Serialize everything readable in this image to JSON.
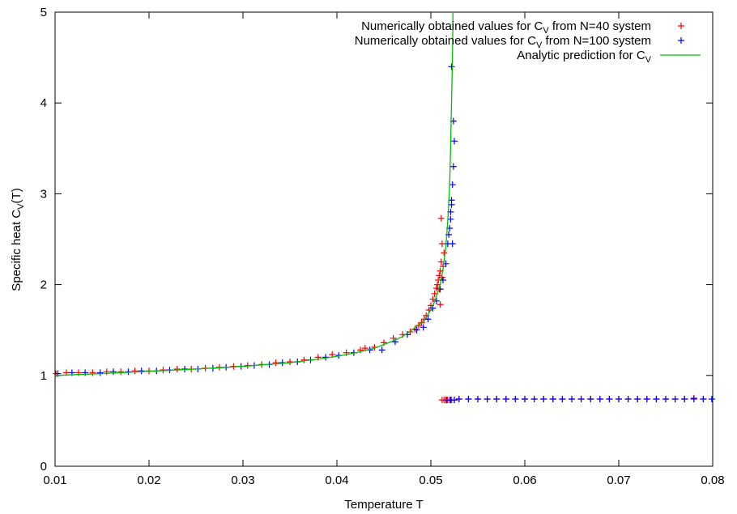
{
  "chart_data": {
    "type": "scatter",
    "xlabel": "Temperature T",
    "ylabel": {
      "prefix": "Specific heat C",
      "sub": "V",
      "suffix": "(T)"
    },
    "xlim": [
      0.01,
      0.08
    ],
    "ylim": [
      0,
      5
    ],
    "xticks": [
      "0.01",
      "0.02",
      "0.03",
      "0.04",
      "0.05",
      "0.06",
      "0.07",
      "0.08"
    ],
    "yticks": [
      "0",
      "1",
      "2",
      "3",
      "4",
      "5"
    ],
    "grid": false,
    "legend_position": "top-right",
    "series": [
      {
        "name": {
          "prefix": "Numerically obtained values for C",
          "sub": "V",
          "suffix": " from N=40 system"
        },
        "kind": "points",
        "color": "#ff0000",
        "points": [
          [
            0.0101,
            1.02
          ],
          [
            0.0112,
            1.03
          ],
          [
            0.0125,
            1.03
          ],
          [
            0.014,
            1.03
          ],
          [
            0.0155,
            1.04
          ],
          [
            0.017,
            1.04
          ],
          [
            0.0185,
            1.05
          ],
          [
            0.02,
            1.05
          ],
          [
            0.0215,
            1.06
          ],
          [
            0.023,
            1.07
          ],
          [
            0.0245,
            1.07
          ],
          [
            0.026,
            1.08
          ],
          [
            0.0275,
            1.09
          ],
          [
            0.029,
            1.1
          ],
          [
            0.0305,
            1.11
          ],
          [
            0.032,
            1.12
          ],
          [
            0.0335,
            1.14
          ],
          [
            0.035,
            1.15
          ],
          [
            0.0365,
            1.17
          ],
          [
            0.038,
            1.2
          ],
          [
            0.0395,
            1.23
          ],
          [
            0.041,
            1.25
          ],
          [
            0.0425,
            1.28
          ],
          [
            0.043,
            1.3
          ],
          [
            0.044,
            1.31
          ],
          [
            0.045,
            1.36
          ],
          [
            0.046,
            1.41
          ],
          [
            0.047,
            1.45
          ],
          [
            0.0478,
            1.48
          ],
          [
            0.0483,
            1.51
          ],
          [
            0.0487,
            1.55
          ],
          [
            0.049,
            1.58
          ],
          [
            0.0493,
            1.62
          ],
          [
            0.0495,
            1.66
          ],
          [
            0.0498,
            1.72
          ],
          [
            0.05,
            1.77
          ],
          [
            0.0502,
            1.84
          ],
          [
            0.0504,
            1.9
          ],
          [
            0.0506,
            1.96
          ],
          [
            0.0507,
            2.0
          ],
          [
            0.0508,
            2.05
          ],
          [
            0.0509,
            2.1
          ],
          [
            0.051,
            2.15
          ],
          [
            0.0511,
            2.25
          ],
          [
            0.0512,
            2.45
          ],
          [
            0.0511,
            2.73
          ],
          [
            0.051,
            1.78
          ],
          [
            0.0509,
            1.95
          ],
          [
            0.0512,
            2.08
          ],
          [
            0.0513,
            2.2
          ],
          [
            0.0514,
            2.35
          ],
          [
            0.0512,
            0.73
          ],
          [
            0.0514,
            0.73
          ],
          [
            0.0516,
            0.73
          ],
          [
            0.0518,
            0.73
          ],
          [
            0.052,
            0.73
          ],
          [
            0.0522,
            0.73
          ],
          [
            0.0525,
            0.73
          ],
          [
            0.053,
            0.74
          ],
          [
            0.054,
            0.74
          ],
          [
            0.055,
            0.74
          ],
          [
            0.056,
            0.74
          ],
          [
            0.057,
            0.74
          ],
          [
            0.058,
            0.74
          ],
          [
            0.059,
            0.74
          ],
          [
            0.06,
            0.74
          ],
          [
            0.061,
            0.74
          ],
          [
            0.062,
            0.74
          ],
          [
            0.063,
            0.74
          ],
          [
            0.064,
            0.74
          ],
          [
            0.065,
            0.74
          ],
          [
            0.066,
            0.74
          ],
          [
            0.067,
            0.74
          ],
          [
            0.068,
            0.74
          ],
          [
            0.069,
            0.74
          ],
          [
            0.07,
            0.74
          ],
          [
            0.071,
            0.74
          ],
          [
            0.072,
            0.74
          ],
          [
            0.073,
            0.74
          ],
          [
            0.074,
            0.74
          ],
          [
            0.075,
            0.74
          ],
          [
            0.076,
            0.74
          ],
          [
            0.077,
            0.74
          ],
          [
            0.078,
            0.75
          ],
          [
            0.079,
            0.74
          ]
        ]
      },
      {
        "name": {
          "prefix": "Numerically obtained values for C",
          "sub": "V",
          "suffix": " from N=100 system"
        },
        "kind": "points",
        "color": "#0000ff",
        "points": [
          [
            0.0103,
            1.02
          ],
          [
            0.0118,
            1.03
          ],
          [
            0.0132,
            1.03
          ],
          [
            0.0148,
            1.03
          ],
          [
            0.0162,
            1.04
          ],
          [
            0.0178,
            1.04
          ],
          [
            0.0192,
            1.05
          ],
          [
            0.0208,
            1.05
          ],
          [
            0.0222,
            1.06
          ],
          [
            0.0238,
            1.07
          ],
          [
            0.0252,
            1.07
          ],
          [
            0.0268,
            1.08
          ],
          [
            0.0282,
            1.09
          ],
          [
            0.0298,
            1.1
          ],
          [
            0.0312,
            1.11
          ],
          [
            0.0328,
            1.12
          ],
          [
            0.0342,
            1.14
          ],
          [
            0.0358,
            1.15
          ],
          [
            0.0372,
            1.17
          ],
          [
            0.0388,
            1.2
          ],
          [
            0.0402,
            1.22
          ],
          [
            0.0418,
            1.25
          ],
          [
            0.0435,
            1.28
          ],
          [
            0.0448,
            1.28
          ],
          [
            0.0462,
            1.37
          ],
          [
            0.0475,
            1.45
          ],
          [
            0.0485,
            1.5
          ],
          [
            0.0492,
            1.53
          ],
          [
            0.0497,
            1.62
          ],
          [
            0.0502,
            1.74
          ],
          [
            0.0506,
            1.82
          ],
          [
            0.051,
            1.95
          ],
          [
            0.0513,
            2.05
          ],
          [
            0.0516,
            2.23
          ],
          [
            0.0518,
            2.45
          ],
          [
            0.0519,
            2.55
          ],
          [
            0.052,
            2.62
          ],
          [
            0.0521,
            2.72
          ],
          [
            0.0521,
            2.8
          ],
          [
            0.0522,
            2.88
          ],
          [
            0.0522,
            2.93
          ],
          [
            0.0523,
            2.45
          ],
          [
            0.0523,
            3.1
          ],
          [
            0.0524,
            3.3
          ],
          [
            0.0525,
            3.58
          ],
          [
            0.0524,
            3.8
          ],
          [
            0.0522,
            4.4
          ],
          [
            0.0517,
            0.73
          ],
          [
            0.0521,
            0.73
          ],
          [
            0.0525,
            0.73
          ],
          [
            0.053,
            0.74
          ],
          [
            0.054,
            0.74
          ],
          [
            0.055,
            0.74
          ],
          [
            0.056,
            0.74
          ],
          [
            0.057,
            0.74
          ],
          [
            0.058,
            0.74
          ],
          [
            0.059,
            0.74
          ],
          [
            0.06,
            0.74
          ],
          [
            0.061,
            0.74
          ],
          [
            0.062,
            0.74
          ],
          [
            0.063,
            0.74
          ],
          [
            0.064,
            0.74
          ],
          [
            0.065,
            0.74
          ],
          [
            0.066,
            0.74
          ],
          [
            0.067,
            0.74
          ],
          [
            0.068,
            0.74
          ],
          [
            0.069,
            0.74
          ],
          [
            0.07,
            0.74
          ],
          [
            0.071,
            0.74
          ],
          [
            0.072,
            0.74
          ],
          [
            0.073,
            0.74
          ],
          [
            0.074,
            0.74
          ],
          [
            0.075,
            0.74
          ],
          [
            0.076,
            0.74
          ],
          [
            0.077,
            0.74
          ],
          [
            0.078,
            0.74
          ],
          [
            0.079,
            0.74
          ],
          [
            0.0799,
            0.74
          ]
        ]
      },
      {
        "name": {
          "prefix": "Analytic prediction for C",
          "sub": "V",
          "suffix": ""
        },
        "kind": "line",
        "color": "#00c000",
        "points": [
          [
            0.01,
            1.0
          ],
          [
            0.015,
            1.02
          ],
          [
            0.02,
            1.045
          ],
          [
            0.025,
            1.07
          ],
          [
            0.03,
            1.1
          ],
          [
            0.035,
            1.14
          ],
          [
            0.038,
            1.18
          ],
          [
            0.04,
            1.21
          ],
          [
            0.042,
            1.25
          ],
          [
            0.044,
            1.3
          ],
          [
            0.045,
            1.34
          ],
          [
            0.046,
            1.38
          ],
          [
            0.047,
            1.43
          ],
          [
            0.048,
            1.5
          ],
          [
            0.049,
            1.58
          ],
          [
            0.0495,
            1.64
          ],
          [
            0.05,
            1.72
          ],
          [
            0.0505,
            1.84
          ],
          [
            0.051,
            2.0
          ],
          [
            0.0513,
            2.18
          ],
          [
            0.0516,
            2.42
          ],
          [
            0.0518,
            2.7
          ],
          [
            0.052,
            3.1
          ],
          [
            0.0521,
            3.5
          ],
          [
            0.0522,
            4.0
          ],
          [
            0.0523,
            4.5
          ],
          [
            0.05235,
            5.0
          ]
        ]
      }
    ]
  }
}
